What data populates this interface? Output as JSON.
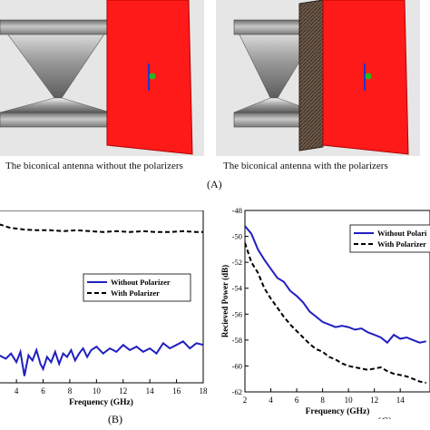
{
  "panel_a": {
    "caption_left": "The biconical antenna without the polarizers",
    "caption_right": "The biconical antenna with the polarizers",
    "label": "(A)"
  },
  "chart_data": [
    {
      "panel": "(B)",
      "type": "line",
      "xlabel": "Frequency (GHz)",
      "ylabel": "",
      "xlim": [
        2.7,
        18
      ],
      "xticks": [
        4,
        6,
        8,
        10,
        12,
        14,
        16,
        18
      ],
      "ylim": [
        0,
        10
      ],
      "grid": false,
      "legend": "center-right",
      "series": [
        {
          "name": "Without Polarizer",
          "color": "#1f1fbf",
          "style": "solid",
          "x": [
            2.7,
            3.2,
            3.6,
            4.0,
            4.3,
            4.6,
            4.9,
            5.2,
            5.5,
            5.8,
            6.0,
            6.3,
            6.6,
            6.9,
            7.2,
            7.5,
            7.8,
            8.1,
            8.4,
            8.7,
            9.0,
            9.3,
            9.6,
            10.0,
            10.5,
            11.0,
            11.5,
            12.0,
            12.5,
            13.0,
            13.5,
            14.0,
            14.5,
            15.0,
            15.5,
            16.0,
            16.5,
            17.0,
            17.5,
            18.0
          ],
          "y": [
            1.6,
            1.4,
            1.7,
            1.2,
            1.8,
            0.4,
            1.6,
            1.3,
            1.9,
            1.1,
            0.8,
            1.5,
            1.2,
            1.8,
            1.1,
            1.7,
            1.5,
            1.9,
            1.3,
            1.7,
            2.0,
            1.5,
            1.9,
            2.1,
            1.7,
            2.0,
            1.8,
            2.2,
            1.9,
            2.1,
            1.8,
            2.0,
            1.7,
            2.3,
            2.0,
            2.2,
            2.4,
            2.0,
            2.3,
            2.2
          ]
        },
        {
          "name": "With Polarizer",
          "color": "#000000",
          "style": "dashed",
          "x": [
            2.7,
            3.5,
            4.5,
            5.5,
            6.5,
            7.5,
            8.5,
            9.5,
            10.5,
            11.5,
            12.5,
            13.5,
            14.5,
            15.5,
            16.5,
            17.5,
            18.0
          ],
          "y": [
            9.2,
            9.0,
            8.9,
            8.85,
            8.85,
            8.8,
            8.85,
            8.8,
            8.75,
            8.8,
            8.75,
            8.8,
            8.75,
            8.75,
            8.8,
            8.75,
            8.75
          ]
        }
      ]
    },
    {
      "panel": "(C)",
      "type": "line",
      "xlabel": "Frequency (GHz)",
      "ylabel": "Recieved Power (dB)",
      "xlim": [
        2,
        16.3
      ],
      "xticks": [
        2,
        4,
        6,
        8,
        10,
        12,
        14
      ],
      "ylim": [
        -62,
        -48
      ],
      "yticks": [
        -62,
        -60,
        -58,
        -56,
        -54,
        -52,
        -50,
        -48
      ],
      "grid": false,
      "legend": "top-right",
      "series": [
        {
          "name": "Without Polari",
          "color": "#1f1fbf",
          "style": "solid",
          "x": [
            2.0,
            2.5,
            3.0,
            3.5,
            4.0,
            4.5,
            5.0,
            5.5,
            6.0,
            6.5,
            7.0,
            7.5,
            8.0,
            8.5,
            9.0,
            9.5,
            10.0,
            10.5,
            11.0,
            11.5,
            12.0,
            12.5,
            13.0,
            13.5,
            14.0,
            14.5,
            15.0,
            15.5,
            16.0
          ],
          "y": [
            -49.2,
            -49.8,
            -51.0,
            -51.8,
            -52.5,
            -53.2,
            -53.5,
            -54.2,
            -54.6,
            -55.1,
            -55.8,
            -56.2,
            -56.6,
            -56.8,
            -57.0,
            -56.9,
            -57.0,
            -57.2,
            -57.1,
            -57.4,
            -57.6,
            -57.8,
            -58.2,
            -57.6,
            -57.9,
            -57.8,
            -58.0,
            -58.2,
            -58.1
          ]
        },
        {
          "name": "With Polarizer",
          "color": "#000000",
          "style": "dashed",
          "x": [
            2.0,
            2.5,
            3.0,
            3.5,
            4.0,
            4.5,
            5.0,
            5.5,
            6.0,
            6.5,
            7.0,
            7.5,
            8.0,
            8.5,
            9.0,
            9.5,
            10.0,
            10.5,
            11.0,
            11.5,
            12.0,
            12.5,
            13.0,
            13.5,
            14.0,
            14.5,
            15.0,
            15.5,
            16.0
          ],
          "y": [
            -50.5,
            -52.0,
            -52.8,
            -54.0,
            -54.8,
            -55.5,
            -56.2,
            -56.8,
            -57.3,
            -57.8,
            -58.3,
            -58.7,
            -58.9,
            -59.3,
            -59.5,
            -59.8,
            -60.0,
            -60.1,
            -60.2,
            -60.3,
            -60.2,
            -60.1,
            -60.4,
            -60.6,
            -60.7,
            -60.8,
            -61.0,
            -61.2,
            -61.3
          ]
        }
      ]
    }
  ]
}
